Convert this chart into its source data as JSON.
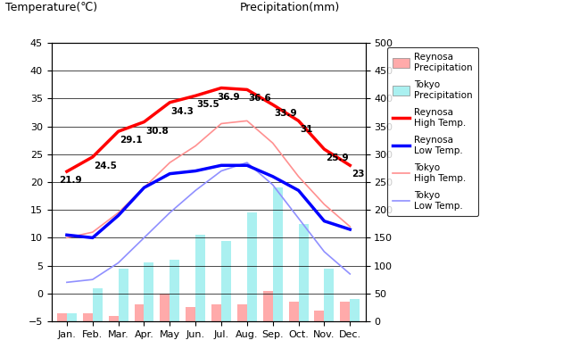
{
  "months": [
    "Jan.",
    "Feb.",
    "Mar.",
    "Apr.",
    "May",
    "Jun.",
    "Jul.",
    "Aug.",
    "Sep.",
    "Oct.",
    "Nov.",
    "Dec."
  ],
  "reynosa_high": [
    21.9,
    24.5,
    29.1,
    30.8,
    34.3,
    35.5,
    36.9,
    36.6,
    33.9,
    31.0,
    25.9,
    23.0
  ],
  "reynosa_low": [
    10.5,
    10.0,
    14.0,
    19.0,
    21.5,
    22.0,
    23.0,
    23.0,
    21.0,
    18.5,
    13.0,
    11.5
  ],
  "tokyo_high": [
    10.0,
    11.0,
    14.5,
    19.0,
    23.5,
    26.5,
    30.5,
    31.0,
    27.0,
    21.0,
    16.0,
    12.0
  ],
  "tokyo_low": [
    2.0,
    2.5,
    5.5,
    10.0,
    14.5,
    18.5,
    22.0,
    23.5,
    19.5,
    13.5,
    7.5,
    3.5
  ],
  "reynosa_precip": [
    15,
    15,
    10,
    30,
    50,
    25,
    30,
    30,
    55,
    35,
    20,
    35
  ],
  "tokyo_precip": [
    15,
    60,
    95,
    105,
    110,
    155,
    145,
    195,
    240,
    175,
    95,
    40
  ],
  "reynosa_high_labels": [
    "21.9",
    "24.5",
    "29.1",
    "30.8",
    "34.3",
    "35.5",
    "36.9",
    "36.6",
    "33.9",
    "31",
    "25.9",
    "23"
  ],
  "title_left": "Temperature(℃)",
  "title_right": "Precipitation(mm)",
  "ylim_temp": [
    -5,
    45
  ],
  "ylim_precip": [
    0,
    500
  ],
  "bg_color": "#c8c8c8",
  "reynosa_high_color": "#ff0000",
  "reynosa_low_color": "#0000ff",
  "tokyo_high_color": "#ff9090",
  "tokyo_low_color": "#9090ff",
  "reynosa_precip_color": "#ffaaaa",
  "tokyo_precip_color": "#aaf0f0",
  "legend_labels": [
    "Reynosa\nPrecipitation",
    "Tokyo\nPrecipitation",
    "Reynosa\nHigh Temp.",
    "Reynosa\nLow Temp.",
    "Tokyo\nHigh Temp.",
    "Tokyo\nLow Temp."
  ]
}
